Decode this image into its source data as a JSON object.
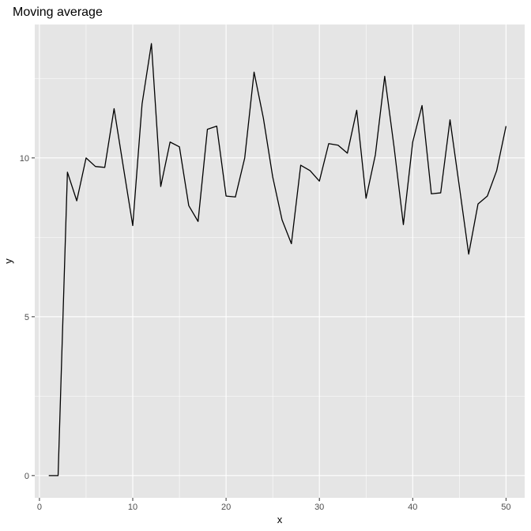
{
  "chart_data": {
    "type": "line",
    "title": "Moving average",
    "xlabel": "x",
    "ylabel": "y",
    "xlim": [
      -0.5,
      52
    ],
    "ylim": [
      -0.7,
      14.2
    ],
    "xticks": [
      0,
      10,
      20,
      30,
      40,
      50
    ],
    "yticks": [
      0,
      5,
      10
    ],
    "grid": true,
    "legend": "none",
    "colors": {
      "panel": "#e5e5e5",
      "grid": "#ffffff",
      "line": "#000000",
      "tick": "#333333"
    },
    "series": [
      {
        "x": [
          1,
          2,
          3,
          4,
          5,
          6,
          7,
          8,
          9,
          10,
          11,
          12,
          13,
          14,
          15,
          16,
          17,
          18,
          19,
          20,
          21,
          22,
          23,
          24,
          25,
          26,
          27,
          28,
          29,
          30,
          31,
          32,
          33,
          34,
          35,
          36,
          37,
          38,
          39,
          40,
          41,
          42,
          43,
          44,
          45,
          46,
          47,
          48,
          49,
          50
        ],
        "values": [
          0,
          0,
          9.55,
          8.65,
          10,
          9.73,
          9.7,
          11.55,
          9.7,
          7.87,
          11.7,
          13.6,
          9.1,
          10.5,
          10.35,
          8.5,
          8,
          10.9,
          11,
          8.8,
          8.77,
          10,
          12.7,
          11.25,
          9.4,
          8.05,
          7.3,
          9.77,
          9.6,
          9.27,
          10.45,
          10.4,
          10.15,
          11.5,
          8.73,
          10.1,
          12.57,
          10.35,
          7.9,
          10.5,
          11.65,
          8.87,
          8.9,
          11.2,
          9.1,
          6.97,
          8.55,
          8.8,
          9.6,
          11
        ]
      }
    ]
  }
}
